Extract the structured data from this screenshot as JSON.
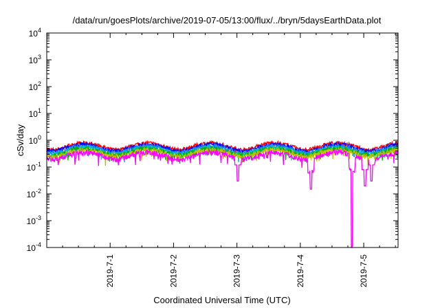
{
  "chart_data": {
    "type": "line",
    "title": "/data/run/goesPlots/archive/2019-07-05/13:00/flux/../bryn/5daysEarthData.plot",
    "xlabel": "Coordinated Universal Time (UTC)",
    "ylabel": "cSv/day",
    "yscale": "log",
    "ylim": [
      0.0001,
      10000
    ],
    "xlim": [
      "2019-06-30 00:00",
      "2019-07-05 13:00"
    ],
    "y_ticks": [
      {
        "base": "10",
        "exp": "4"
      },
      {
        "base": "10",
        "exp": "3"
      },
      {
        "base": "10",
        "exp": "2"
      },
      {
        "base": "10",
        "exp": "1"
      },
      {
        "base": "10",
        "exp": "0"
      },
      {
        "base": "10",
        "exp": "-1"
      },
      {
        "base": "10",
        "exp": "-2"
      },
      {
        "base": "10",
        "exp": "-3"
      },
      {
        "base": "10",
        "exp": "-4"
      }
    ],
    "x_ticks": [
      "2019-7-1",
      "2019-7-2",
      "2019-7-3",
      "2019-7-4",
      "2019-7-5"
    ],
    "grid": false,
    "legend": "none",
    "series": [
      {
        "color": "#ff0000",
        "level": 0.62
      },
      {
        "color": "#0000ff",
        "level": 0.55
      },
      {
        "color": "#2080ff",
        "level": 0.48
      },
      {
        "color": "#00c0c0",
        "level": 0.42
      },
      {
        "color": "#00b000",
        "level": 0.38
      },
      {
        "color": "#c0c000",
        "level": 0.34
      },
      {
        "color": "#ff00ff",
        "level": 0.27
      }
    ],
    "notable_dips": [
      {
        "time": "2019-07-03 00:20",
        "min_value": 0.03
      },
      {
        "time": "2019-07-04 04:00",
        "min_value": 0.015
      },
      {
        "time": "2019-07-04 19:30",
        "min_value": 0.0001
      },
      {
        "time": "2019-07-05 00:30",
        "min_value": 0.02
      },
      {
        "time": "2019-07-05 03:00",
        "min_value": 0.03
      }
    ]
  }
}
